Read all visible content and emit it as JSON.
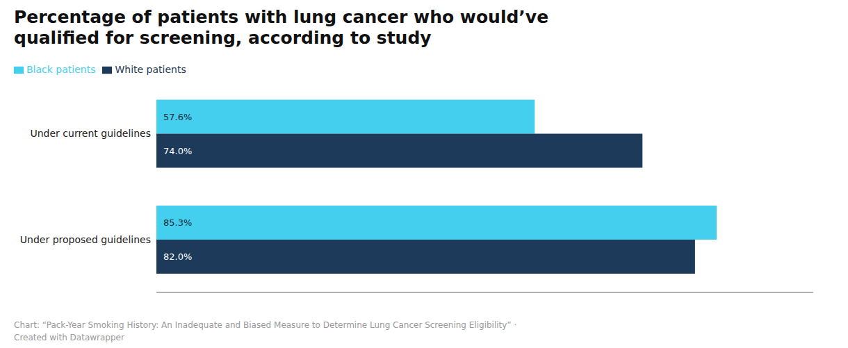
{
  "chart_data": {
    "type": "bar",
    "orientation": "horizontal",
    "title": "Percentage of patients with lung cancer who would’ve\nqualified for screening, according to study",
    "annotations": [
      "Chart: “Pack-Year Smoking History: An Inadequate and Biased Measure to Determine Lung Cancer Screening Eligibility” ·\nCreated with Datawrapper"
    ],
    "categories": [
      "Under current guidelines",
      "Under proposed guidelines"
    ],
    "series": [
      {
        "name": "Black patients",
        "color": "#44cfee",
        "values": [
          57.6,
          85.3
        ],
        "value_labels": [
          "57.6%",
          "85.3%"
        ]
      },
      {
        "name": "White patients",
        "color": "#1e3a5a",
        "values": [
          74.0,
          82.0
        ],
        "value_labels": [
          "74.0%",
          "82.0%"
        ]
      }
    ],
    "xlim": [
      0,
      100
    ],
    "data_labels": true,
    "tick_labels": "y",
    "legend": "top",
    "grid": false
  }
}
